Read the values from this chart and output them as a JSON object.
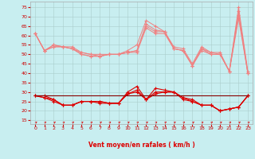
{
  "x": [
    0,
    1,
    2,
    3,
    4,
    5,
    6,
    7,
    8,
    9,
    10,
    11,
    12,
    13,
    14,
    15,
    16,
    17,
    18,
    19,
    20,
    21,
    22,
    23
  ],
  "light1": [
    61,
    52,
    55,
    54,
    54,
    51,
    50,
    50,
    50,
    50,
    52,
    55,
    68,
    65,
    62,
    54,
    53,
    45,
    54,
    51,
    51,
    41,
    75,
    41
  ],
  "light2": [
    61,
    52,
    55,
    54,
    53,
    51,
    50,
    49,
    50,
    50,
    51,
    52,
    66,
    63,
    62,
    53,
    52,
    44,
    53,
    51,
    50,
    41,
    73,
    40
  ],
  "light3": [
    61,
    52,
    54,
    54,
    53,
    50,
    49,
    49,
    50,
    50,
    51,
    52,
    65,
    62,
    62,
    53,
    52,
    44,
    53,
    50,
    50,
    41,
    71,
    40
  ],
  "light4": [
    61,
    52,
    54,
    54,
    53,
    50,
    49,
    49,
    50,
    50,
    51,
    51,
    64,
    61,
    61,
    53,
    52,
    44,
    52,
    50,
    50,
    41,
    69,
    40
  ],
  "dark1": [
    28,
    28,
    26,
    23,
    23,
    25,
    25,
    25,
    24,
    24,
    30,
    33,
    26,
    32,
    31,
    30,
    27,
    26,
    23,
    23,
    20,
    21,
    22,
    28
  ],
  "dark2": [
    28,
    27,
    26,
    23,
    23,
    25,
    25,
    25,
    24,
    24,
    29,
    31,
    26,
    30,
    30,
    30,
    27,
    25,
    23,
    23,
    20,
    21,
    22,
    28
  ],
  "dark3": [
    28,
    27,
    25,
    23,
    23,
    25,
    25,
    24,
    24,
    24,
    29,
    30,
    26,
    29,
    30,
    30,
    26,
    25,
    23,
    23,
    20,
    21,
    22,
    28
  ],
  "flat": [
    28,
    28,
    28,
    28,
    28,
    28,
    28,
    28,
    28,
    28,
    28,
    28,
    28,
    28,
    28,
    28,
    28,
    28,
    28,
    28,
    28,
    28,
    28,
    28
  ],
  "color_light": "#f08080",
  "color_dark": "#dd0000",
  "color_flat": "#880000",
  "bg_color": "#c8eef0",
  "grid_color": "#aacccc",
  "xlabel": "Vent moyen/en rafales ( km/h )",
  "yticks": [
    15,
    20,
    25,
    30,
    35,
    40,
    45,
    50,
    55,
    60,
    65,
    70,
    75
  ],
  "xticks": [
    0,
    1,
    2,
    3,
    4,
    5,
    6,
    7,
    8,
    9,
    10,
    11,
    12,
    13,
    14,
    15,
    16,
    17,
    18,
    19,
    20,
    21,
    22,
    23
  ],
  "ylim": [
    13,
    78
  ],
  "xlim": [
    -0.5,
    23.5
  ]
}
